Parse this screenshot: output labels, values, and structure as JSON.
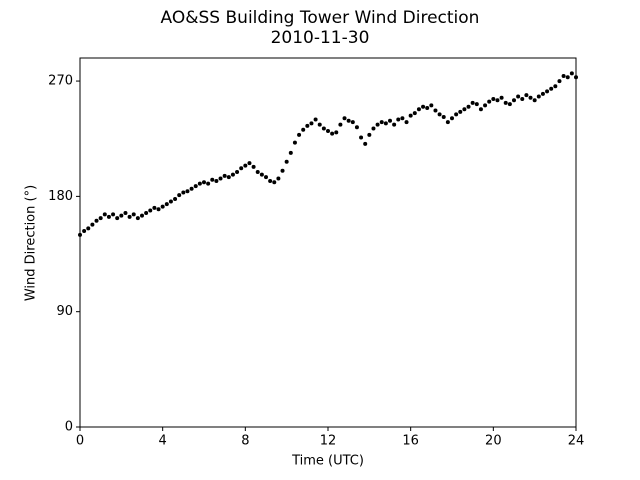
{
  "chart_data": {
    "type": "scatter",
    "title": "AO&SS Building Tower Wind Direction",
    "subtitle": "2010-11-30",
    "x_label": "Time (UTC)",
    "y_label": "Wind Direction (°)",
    "color": "#000000",
    "grid": false,
    "xlim": [
      0,
      24
    ],
    "ylim": [
      0,
      288
    ],
    "xticks": [
      0,
      4,
      8,
      12,
      16,
      20,
      24
    ],
    "yticks": [
      0,
      90,
      180,
      270
    ],
    "x": [
      0,
      0.2,
      0.4,
      0.6,
      0.8,
      1,
      1.2,
      1.4,
      1.6,
      1.8,
      2,
      2.2,
      2.4,
      2.6,
      2.8,
      3,
      3.2,
      3.4,
      3.6,
      3.8,
      4,
      4.2,
      4.4,
      4.6,
      4.8,
      5,
      5.2,
      5.4,
      5.6,
      5.8,
      6,
      6.2,
      6.4,
      6.6,
      6.8,
      7,
      7.2,
      7.4,
      7.6,
      7.8,
      8,
      8.2,
      8.4,
      8.6,
      8.8,
      9,
      9.2,
      9.4,
      9.6,
      9.8,
      10,
      10.2,
      10.4,
      10.6,
      10.8,
      11,
      11.2,
      11.4,
      11.6,
      11.8,
      12,
      12.2,
      12.4,
      12.6,
      12.8,
      13,
      13.2,
      13.4,
      13.6,
      13.8,
      14,
      14.2,
      14.4,
      14.6,
      14.8,
      15,
      15.2,
      15.4,
      15.6,
      15.8,
      16,
      16.2,
      16.4,
      16.6,
      16.8,
      17,
      17.2,
      17.4,
      17.6,
      17.8,
      18,
      18.2,
      18.4,
      18.6,
      18.8,
      19,
      19.2,
      19.4,
      19.6,
      19.8,
      20,
      20.2,
      20.4,
      20.6,
      20.8,
      21,
      21.2,
      21.4,
      21.6,
      21.8,
      22,
      22.2,
      22.4,
      22.6,
      22.8,
      23,
      23.2,
      23.4,
      23.6,
      23.8,
      24
    ],
    "values": [
      150,
      153,
      155,
      158,
      161,
      163,
      166,
      164,
      166,
      163,
      165,
      167,
      164,
      166,
      163,
      165,
      167,
      169,
      171,
      170,
      172,
      174,
      176,
      178,
      181,
      183,
      184,
      186,
      188,
      190,
      191,
      190,
      193,
      192,
      194,
      196,
      195,
      197,
      199,
      202,
      204,
      206,
      203,
      199,
      197,
      195,
      192,
      191,
      194,
      200,
      207,
      214,
      222,
      228,
      232,
      235,
      237,
      240,
      236,
      233,
      231,
      229,
      230,
      236,
      241,
      239,
      238,
      234,
      226,
      221,
      228,
      233,
      236,
      238,
      237,
      239,
      236,
      240,
      241,
      238,
      243,
      245,
      248,
      250,
      249,
      251,
      247,
      244,
      242,
      238,
      241,
      244,
      246,
      248,
      250,
      253,
      252,
      248,
      251,
      254,
      256,
      255,
      257,
      253,
      252,
      255,
      258,
      256,
      259,
      257,
      255,
      258,
      260,
      262,
      264,
      266,
      270,
      274,
      273,
      276,
      273
    ]
  }
}
